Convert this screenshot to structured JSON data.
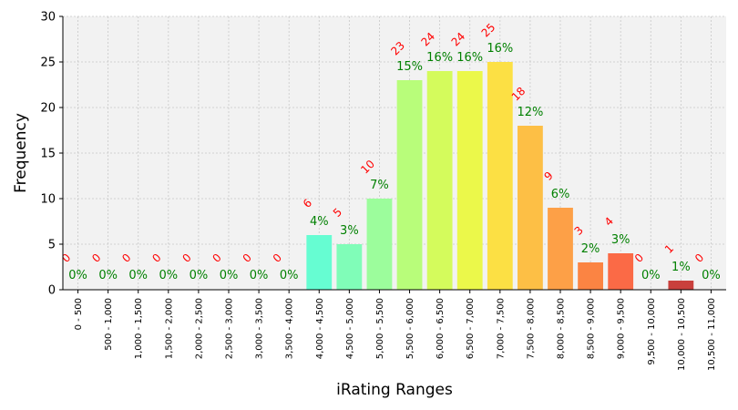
{
  "chart_data": {
    "type": "bar",
    "xlabel": "iRating Ranges",
    "ylabel": "Frequency",
    "ylim": [
      0,
      30
    ],
    "yticks": [
      0,
      5,
      10,
      15,
      20,
      25,
      30
    ],
    "grid": true,
    "categories": [
      "0 - 500",
      "500 - 1,000",
      "1,000 - 1,500",
      "1,500 - 2,000",
      "2,000 - 2,500",
      "2,500 - 3,000",
      "3,000 - 3,500",
      "3,500 - 4,000",
      "4,000 - 4,500",
      "4,500 - 5,000",
      "5,000 - 5,500",
      "5,500 - 6,000",
      "6,000 - 6,500",
      "6,500 - 7,000",
      "7,000 - 7,500",
      "7,500 - 8,000",
      "8,000 - 8,500",
      "8,500 - 9,000",
      "9,000 - 9,500",
      "9,500 - 10,000",
      "10,000 - 10,500",
      "10,500 - 11,000"
    ],
    "values": [
      0,
      0,
      0,
      0,
      0,
      0,
      0,
      0,
      6,
      5,
      10,
      23,
      24,
      24,
      25,
      18,
      9,
      3,
      4,
      0,
      1,
      0
    ],
    "percent_labels": [
      "0%",
      "0%",
      "0%",
      "0%",
      "0%",
      "0%",
      "0%",
      "0%",
      "4%",
      "3%",
      "7%",
      "15%",
      "16%",
      "16%",
      "16%",
      "12%",
      "6%",
      "2%",
      "3%",
      "0%",
      "1%",
      "0%"
    ],
    "bar_colors": [
      "#3b5bd6",
      "#3f6ff0",
      "#3c8bf8",
      "#2fa8f3",
      "#24c3e4",
      "#2edcd0",
      "#47efb6",
      "#5dfca0",
      "#66fdd2",
      "#80fdb8",
      "#9cfd9c",
      "#b8fd7a",
      "#d4fb5c",
      "#ebf84a",
      "#fce044",
      "#fdbf45",
      "#fda047",
      "#fb8443",
      "#fb6a46",
      "#ec503a",
      "#c9403c",
      "#a52a2a"
    ],
    "count_label_color": "#ff0000",
    "percent_label_color": "#008000",
    "plot_background": "#f2f2f2"
  }
}
